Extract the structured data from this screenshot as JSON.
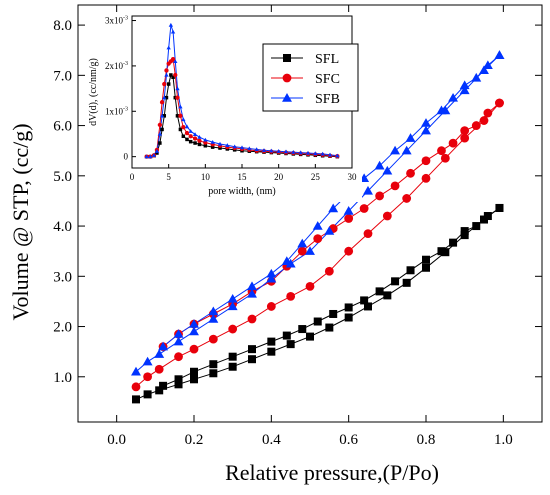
{
  "chart_data": [
    {
      "type": "line",
      "title": "",
      "xlabel": "Relative pressure,(P/Po)",
      "ylabel": "Volume @ STP, (cc/g)",
      "xlim": [
        -0.1,
        1.1
      ],
      "ylim": [
        0.1,
        8.4
      ],
      "xticks": [
        "0.0",
        "0.2",
        "0.4",
        "0.6",
        "0.8",
        "1.0"
      ],
      "yticks": [
        "1.0",
        "2.0",
        "3.0",
        "4.0",
        "5.0",
        "6.0",
        "7.0",
        "8.0"
      ],
      "xtick_values": [
        0.0,
        0.2,
        0.4,
        0.6,
        0.8,
        1.0
      ],
      "ytick_values": [
        1.0,
        2.0,
        3.0,
        4.0,
        5.0,
        6.0,
        7.0,
        8.0
      ],
      "grid": false,
      "legend": "inset top-right",
      "series": [
        {
          "name": "SFL",
          "color": "#000000",
          "marker": "square",
          "adsorption": {
            "x": [
              0.05,
              0.08,
              0.11,
              0.16,
              0.2,
              0.25,
              0.3,
              0.35,
              0.4,
              0.45,
              0.5,
              0.55,
              0.6,
              0.65,
              0.7,
              0.75,
              0.8,
              0.85,
              0.9,
              0.95,
              0.99
            ],
            "y": [
              0.55,
              0.65,
              0.73,
              0.85,
              0.95,
              1.07,
              1.2,
              1.35,
              1.5,
              1.65,
              1.8,
              1.98,
              2.18,
              2.4,
              2.62,
              2.87,
              3.17,
              3.48,
              3.82,
              4.13,
              4.36
            ]
          },
          "desorption": {
            "x": [
              0.99,
              0.96,
              0.93,
              0.9,
              0.87,
              0.84,
              0.8,
              0.76,
              0.72,
              0.68,
              0.64,
              0.6,
              0.56,
              0.52,
              0.48,
              0.44,
              0.4,
              0.35,
              0.3,
              0.25,
              0.2,
              0.16,
              0.12
            ],
            "y": [
              4.36,
              4.2,
              4.0,
              3.9,
              3.67,
              3.5,
              3.33,
              3.12,
              2.9,
              2.7,
              2.52,
              2.38,
              2.25,
              2.1,
              1.95,
              1.82,
              1.7,
              1.55,
              1.4,
              1.25,
              1.1,
              0.95,
              0.82
            ]
          }
        },
        {
          "name": "SFC",
          "color": "#e8000b",
          "marker": "circle",
          "adsorption": {
            "x": [
              0.05,
              0.08,
              0.11,
              0.16,
              0.2,
              0.25,
              0.3,
              0.35,
              0.4,
              0.45,
              0.5,
              0.55,
              0.6,
              0.65,
              0.7,
              0.75,
              0.8,
              0.85,
              0.9,
              0.95,
              0.99
            ],
            "y": [
              0.8,
              1.0,
              1.15,
              1.4,
              1.55,
              1.75,
              1.95,
              2.15,
              2.4,
              2.6,
              2.8,
              3.1,
              3.5,
              3.85,
              4.2,
              4.55,
              4.95,
              5.35,
              5.75,
              6.1,
              6.45
            ]
          },
          "desorption": {
            "x": [
              0.99,
              0.96,
              0.93,
              0.9,
              0.87,
              0.84,
              0.8,
              0.76,
              0.72,
              0.68,
              0.64,
              0.6,
              0.56,
              0.52,
              0.48,
              0.44,
              0.4,
              0.35,
              0.3,
              0.25,
              0.2,
              0.16,
              0.12
            ],
            "y": [
              6.45,
              6.25,
              6.0,
              5.9,
              5.65,
              5.5,
              5.3,
              5.05,
              4.8,
              4.6,
              4.35,
              4.15,
              3.95,
              3.75,
              3.5,
              3.2,
              2.9,
              2.7,
              2.45,
              2.25,
              2.05,
              1.85,
              1.6
            ]
          }
        },
        {
          "name": "SFB",
          "color": "#0033ff",
          "marker": "triangle",
          "adsorption": {
            "x": [
              0.05,
              0.08,
              0.11,
              0.16,
              0.2,
              0.25,
              0.3,
              0.35,
              0.4,
              0.45,
              0.5,
              0.55,
              0.6,
              0.65,
              0.7,
              0.75,
              0.8,
              0.85,
              0.9,
              0.95,
              0.99
            ],
            "y": [
              1.1,
              1.3,
              1.45,
              1.7,
              1.9,
              2.15,
              2.4,
              2.65,
              2.95,
              3.25,
              3.5,
              3.9,
              4.3,
              4.7,
              5.1,
              5.5,
              5.9,
              6.3,
              6.7,
              7.1,
              7.4
            ]
          },
          "desorption": {
            "x": [
              0.99,
              0.96,
              0.93,
              0.9,
              0.87,
              0.84,
              0.8,
              0.76,
              0.72,
              0.68,
              0.64,
              0.6,
              0.56,
              0.52,
              0.48,
              0.44,
              0.4,
              0.35,
              0.3,
              0.25,
              0.2,
              0.16,
              0.12
            ],
            "y": [
              7.4,
              7.2,
              6.95,
              6.8,
              6.55,
              6.3,
              6.05,
              5.75,
              5.5,
              5.2,
              4.95,
              4.65,
              4.35,
              4.0,
              3.65,
              3.3,
              3.05,
              2.8,
              2.55,
              2.3,
              2.05,
              1.85,
              1.6
            ]
          }
        }
      ]
    },
    {
      "type": "line",
      "title": "",
      "xlabel": "pore width, (nm)",
      "ylabel": "dV(d), (cc/nm/g)",
      "xlim": [
        0,
        30
      ],
      "ylim": [
        -0.00025,
        0.0031
      ],
      "xticks": [
        "0",
        "5",
        "10",
        "15",
        "20",
        "25",
        "30"
      ],
      "xtick_values": [
        0,
        5,
        10,
        15,
        20,
        25,
        30
      ],
      "yticks": [
        "0",
        "1x10",
        "2x10",
        "3x10"
      ],
      "ytick_exponent": "-3",
      "ytick_values": [
        0,
        0.001,
        0.002,
        0.003
      ],
      "grid": false,
      "series": [
        {
          "name": "SFL",
          "color": "#000000",
          "marker": "square",
          "x": [
            2.0,
            2.5,
            3.0,
            3.4,
            3.8,
            4.1,
            4.4,
            4.7,
            5.0,
            5.3,
            5.6,
            5.9,
            6.2,
            6.6,
            7.0,
            7.5,
            8.0,
            8.6,
            9.2,
            10.0,
            11.0,
            12.0,
            13.0,
            14.0,
            15.0,
            16.0,
            17.0,
            18.0,
            19.0,
            20.0,
            21.0,
            22.0,
            23.0,
            24.0,
            25.0,
            26.0,
            27.0,
            28.0
          ],
          "y": [
            0.0,
            0.0,
            2e-05,
            8e-05,
            0.0003,
            0.0006,
            0.0009,
            0.0013,
            0.0016,
            0.0018,
            0.00175,
            0.0013,
            0.0009,
            0.0006,
            0.00045,
            0.00038,
            0.00033,
            0.0003,
            0.00027,
            0.00024,
            0.00021,
            0.00019,
            0.00017,
            0.00015,
            0.00013,
            0.00012,
            0.00011,
            0.0001,
            9e-05,
            8e-05,
            7e-05,
            6e-05,
            5e-05,
            4e-05,
            3e-05,
            2e-05,
            1e-05,
            0.0
          ]
        },
        {
          "name": "SFC",
          "color": "#e8000b",
          "marker": "circle",
          "x": [
            2.0,
            2.5,
            3.0,
            3.4,
            3.8,
            4.1,
            4.4,
            4.7,
            5.0,
            5.3,
            5.6,
            5.9,
            6.2,
            6.6,
            7.0,
            7.5,
            8.0,
            8.6,
            9.2,
            10.0,
            11.0,
            12.0,
            13.0,
            14.0,
            15.0,
            16.0,
            17.0,
            18.0,
            19.0,
            20.0,
            21.0,
            22.0,
            23.0,
            24.0,
            25.0,
            26.0,
            27.0,
            28.0
          ],
          "y": [
            0.0,
            0.0,
            3e-05,
            0.00015,
            0.0007,
            0.0012,
            0.0016,
            0.0019,
            0.00205,
            0.0021,
            0.00215,
            0.0018,
            0.0013,
            0.0009,
            0.00065,
            0.00052,
            0.00045,
            0.0004,
            0.00035,
            0.00031,
            0.00027,
            0.00024,
            0.00021,
            0.00019,
            0.00017,
            0.00015,
            0.00013,
            0.00012,
            0.00011,
            0.0001,
            9e-05,
            8e-05,
            7e-05,
            6e-05,
            5e-05,
            4e-05,
            2e-05,
            1e-05
          ]
        },
        {
          "name": "SFB",
          "color": "#0033ff",
          "marker": "triangle",
          "x": [
            2.0,
            2.5,
            3.0,
            3.4,
            3.8,
            4.1,
            4.4,
            4.7,
            5.0,
            5.3,
            5.6,
            5.9,
            6.2,
            6.6,
            7.0,
            7.5,
            8.0,
            8.6,
            9.2,
            10.0,
            11.0,
            12.0,
            13.0,
            14.0,
            15.0,
            16.0,
            17.0,
            18.0,
            19.0,
            20.0,
            21.0,
            22.0,
            23.0,
            24.0,
            25.0,
            26.0,
            27.0,
            28.0
          ],
          "y": [
            0.0,
            0.0,
            3e-05,
            0.00012,
            0.0005,
            0.0009,
            0.0013,
            0.0018,
            0.0024,
            0.0029,
            0.00275,
            0.0021,
            0.0015,
            0.0011,
            0.00082,
            0.00066,
            0.00056,
            0.00049,
            0.00043,
            0.00037,
            0.00032,
            0.00028,
            0.00025,
            0.00022,
            0.0002,
            0.00018,
            0.00016,
            0.00014,
            0.00013,
            0.00012,
            0.00011,
            0.0001,
            9e-05,
            8e-05,
            7e-05,
            6e-05,
            4e-05,
            2e-05
          ]
        }
      ]
    }
  ]
}
